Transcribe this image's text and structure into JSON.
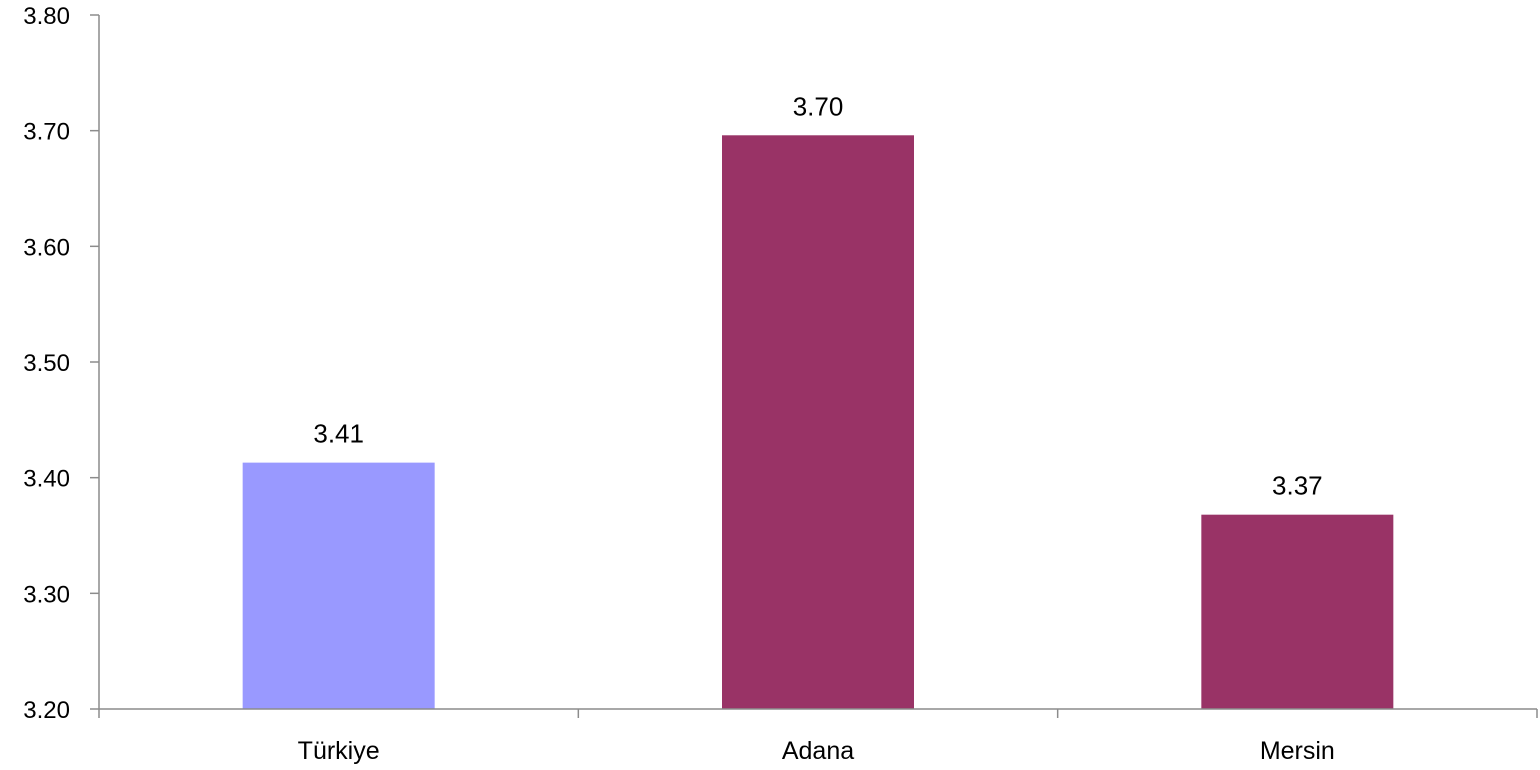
{
  "chart_data": {
    "type": "bar",
    "categories": [
      "Türkiye",
      "Adana",
      "Mersin"
    ],
    "values": [
      3.413,
      3.696,
      3.368
    ],
    "data_labels": [
      "3.41",
      "3.70",
      "3.37"
    ],
    "bar_colors": [
      "#9999ff",
      "#993366",
      "#993366"
    ],
    "ylim": [
      3.2,
      3.8
    ],
    "yticks": [
      "3.20",
      "3.30",
      "3.40",
      "3.50",
      "3.60",
      "3.70",
      "3.80"
    ],
    "grid": false,
    "legend": "none",
    "title": "",
    "xlabel": "",
    "ylabel": ""
  }
}
